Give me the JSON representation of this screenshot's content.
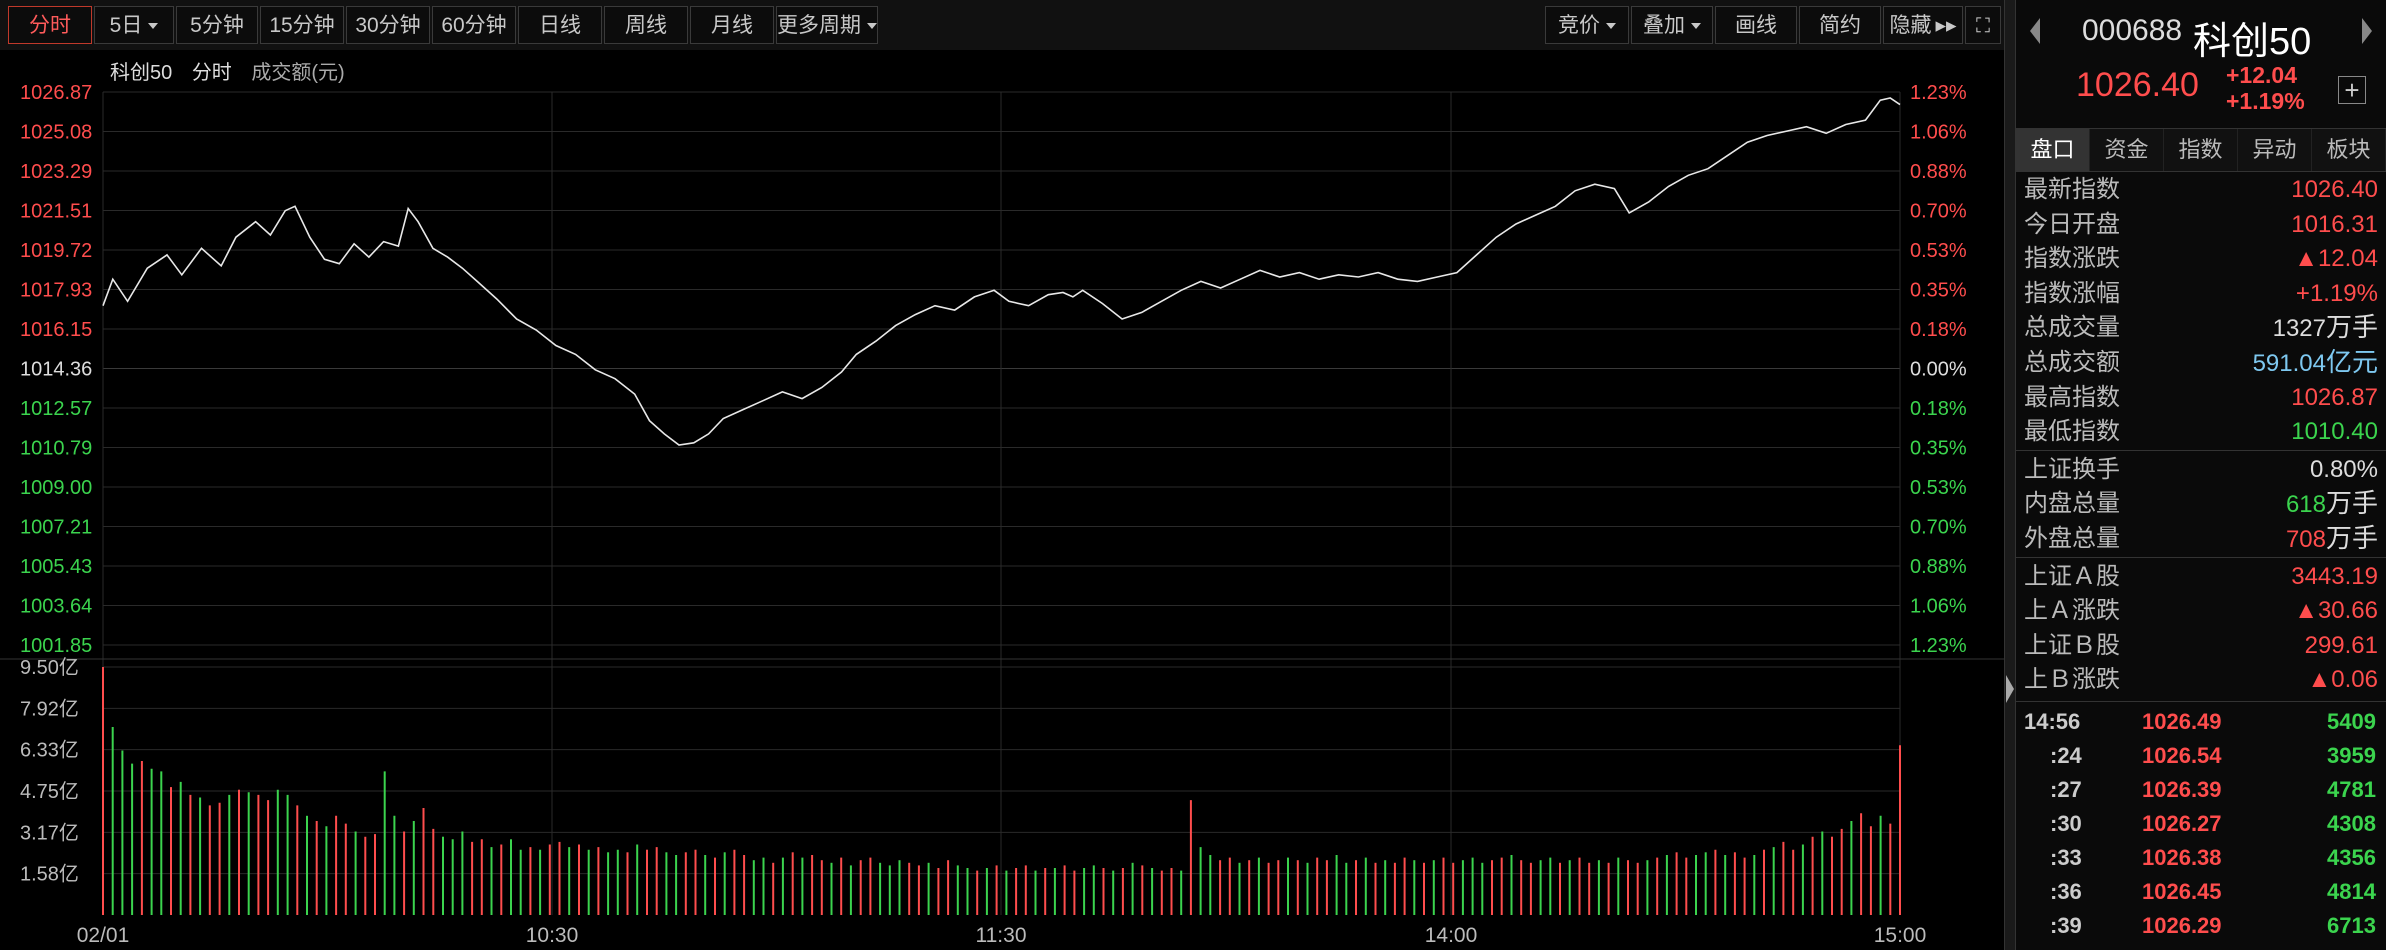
{
  "toolbar": {
    "periods": [
      {
        "label": "分时",
        "active": true
      },
      {
        "label": "5日",
        "dropdown": true
      },
      {
        "label": "5分钟"
      },
      {
        "label": "15分钟"
      },
      {
        "label": "30分钟"
      },
      {
        "label": "60分钟"
      },
      {
        "label": "日线"
      },
      {
        "label": "周线"
      },
      {
        "label": "月线"
      },
      {
        "label": "更多周期",
        "dropdown": true
      }
    ],
    "tools": [
      {
        "label": "竞价",
        "dropdown": true
      },
      {
        "label": "叠加",
        "dropdown": true
      },
      {
        "label": "画线"
      },
      {
        "label": "简约"
      },
      {
        "label": "隐藏"
      }
    ]
  },
  "chart_header": {
    "name": "科创50",
    "mode": "分时",
    "volume_label": "成交额(元)"
  },
  "colors": {
    "up": "#ff4d4d",
    "down": "#3bd44e",
    "flat": "#dddddd",
    "line": "#e8e8e8",
    "grid": "#2a2a2a",
    "accent_blue": "#7ec8f0"
  },
  "chart_data": {
    "type": "line",
    "y_ticks_up": [
      "1026.87",
      "1025.08",
      "1023.29",
      "1021.51",
      "1019.72",
      "1017.93",
      "1016.15"
    ],
    "y_tick_base": "1014.36",
    "y_ticks_down": [
      "1012.57",
      "1010.79",
      "1009.00",
      "1007.21",
      "1005.43",
      "1003.64",
      "1001.85"
    ],
    "pct_ticks_up": [
      "1.23%",
      "1.06%",
      "0.88%",
      "0.70%",
      "0.53%",
      "0.35%",
      "0.18%"
    ],
    "pct_tick_base": "0.00%",
    "pct_ticks_down": [
      "0.18%",
      "0.35%",
      "0.53%",
      "0.70%",
      "0.88%",
      "1.06%",
      "1.23%"
    ],
    "ylim": [
      1001.85,
      1026.87
    ],
    "base": 1014.36,
    "x_ticks": [
      "02/01",
      "10:30",
      "11:30",
      "14:00",
      "15:00"
    ],
    "price_points": [
      [
        0,
        1017.2
      ],
      [
        2,
        1018.4
      ],
      [
        5,
        1017.4
      ],
      [
        9,
        1018.9
      ],
      [
        13,
        1019.5
      ],
      [
        16,
        1018.6
      ],
      [
        20,
        1019.8
      ],
      [
        24,
        1019.0
      ],
      [
        27,
        1020.3
      ],
      [
        31,
        1021.0
      ],
      [
        34,
        1020.4
      ],
      [
        37,
        1021.5
      ],
      [
        39,
        1021.7
      ],
      [
        42,
        1020.3
      ],
      [
        45,
        1019.3
      ],
      [
        48,
        1019.1
      ],
      [
        51,
        1020.0
      ],
      [
        54,
        1019.4
      ],
      [
        57,
        1020.1
      ],
      [
        60,
        1019.9
      ],
      [
        62,
        1021.6
      ],
      [
        64,
        1021.0
      ],
      [
        67,
        1019.8
      ],
      [
        70,
        1019.4
      ],
      [
        73,
        1018.9
      ],
      [
        76,
        1018.3
      ],
      [
        80,
        1017.5
      ],
      [
        84,
        1016.6
      ],
      [
        88,
        1016.1
      ],
      [
        92,
        1015.4
      ],
      [
        96,
        1015.0
      ],
      [
        100,
        1014.3
      ],
      [
        104,
        1013.9
      ],
      [
        108,
        1013.2
      ],
      [
        111,
        1012.0
      ],
      [
        114,
        1011.4
      ],
      [
        117,
        1010.9
      ],
      [
        120,
        1011.0
      ],
      [
        123,
        1011.4
      ],
      [
        126,
        1012.1
      ],
      [
        130,
        1012.5
      ],
      [
        134,
        1012.9
      ],
      [
        138,
        1013.3
      ],
      [
        142,
        1013.0
      ],
      [
        146,
        1013.5
      ],
      [
        150,
        1014.2
      ],
      [
        153,
        1015.0
      ],
      [
        157,
        1015.6
      ],
      [
        161,
        1016.3
      ],
      [
        165,
        1016.8
      ],
      [
        169,
        1017.2
      ],
      [
        173,
        1017.0
      ],
      [
        177,
        1017.6
      ],
      [
        181,
        1017.9
      ],
      [
        184,
        1017.4
      ],
      [
        188,
        1017.2
      ],
      [
        192,
        1017.7
      ],
      [
        195,
        1017.8
      ],
      [
        197,
        1017.6
      ],
      [
        199,
        1017.9
      ],
      [
        203,
        1017.3
      ],
      [
        207,
        1016.6
      ],
      [
        211,
        1016.9
      ],
      [
        215,
        1017.4
      ],
      [
        219,
        1017.9
      ],
      [
        223,
        1018.3
      ],
      [
        227,
        1018.0
      ],
      [
        231,
        1018.4
      ],
      [
        235,
        1018.8
      ],
      [
        239,
        1018.5
      ],
      [
        243,
        1018.7
      ],
      [
        247,
        1018.4
      ],
      [
        251,
        1018.6
      ],
      [
        255,
        1018.5
      ],
      [
        259,
        1018.7
      ],
      [
        263,
        1018.4
      ],
      [
        267,
        1018.3
      ],
      [
        271,
        1018.5
      ],
      [
        275,
        1018.7
      ],
      [
        279,
        1019.5
      ],
      [
        283,
        1020.3
      ],
      [
        287,
        1020.9
      ],
      [
        291,
        1021.3
      ],
      [
        295,
        1021.7
      ],
      [
        299,
        1022.4
      ],
      [
        303,
        1022.7
      ],
      [
        307,
        1022.5
      ],
      [
        310,
        1021.4
      ],
      [
        314,
        1021.9
      ],
      [
        318,
        1022.6
      ],
      [
        322,
        1023.1
      ],
      [
        326,
        1023.4
      ],
      [
        330,
        1024.0
      ],
      [
        334,
        1024.6
      ],
      [
        338,
        1024.9
      ],
      [
        342,
        1025.1
      ],
      [
        346,
        1025.3
      ],
      [
        350,
        1025.0
      ],
      [
        354,
        1025.4
      ],
      [
        358,
        1025.6
      ],
      [
        361,
        1026.5
      ],
      [
        363,
        1026.6
      ],
      [
        365,
        1026.3
      ]
    ],
    "volume_ticks": [
      "9.50亿",
      "7.92亿",
      "6.33亿",
      "4.75亿",
      "3.17亿",
      "1.58亿"
    ],
    "volume_ylim": [
      0,
      9.5
    ],
    "volume_bars": [
      9.5,
      7.2,
      6.3,
      5.8,
      5.9,
      5.6,
      5.5,
      4.9,
      5.1,
      4.6,
      4.5,
      4.2,
      4.3,
      4.6,
      4.8,
      4.7,
      4.6,
      4.4,
      4.8,
      4.6,
      4.2,
      3.8,
      3.6,
      3.4,
      3.8,
      3.5,
      3.2,
      3.0,
      3.1,
      5.5,
      3.8,
      3.2,
      3.6,
      4.1,
      3.3,
      3.0,
      2.9,
      3.2,
      2.8,
      2.9,
      2.6,
      2.7,
      2.9,
      2.5,
      2.6,
      2.5,
      2.7,
      2.8,
      2.6,
      2.7,
      2.5,
      2.6,
      2.4,
      2.5,
      2.4,
      2.7,
      2.5,
      2.6,
      2.4,
      2.3,
      2.4,
      2.5,
      2.3,
      2.2,
      2.4,
      2.5,
      2.3,
      2.1,
      2.2,
      2.0,
      2.2,
      2.4,
      2.2,
      2.3,
      2.1,
      2.0,
      2.2,
      1.9,
      2.1,
      2.2,
      2.0,
      1.9,
      2.1,
      2.0,
      1.9,
      2.0,
      1.8,
      2.1,
      1.9,
      1.8,
      1.7,
      1.8,
      1.9,
      1.7,
      1.8,
      1.9,
      1.7,
      1.8,
      1.8,
      1.9,
      1.7,
      1.8,
      1.9,
      1.8,
      1.7,
      1.8,
      2.0,
      1.9,
      1.8,
      1.7,
      1.8,
      1.7,
      4.4,
      2.6,
      2.3,
      2.1,
      2.2,
      2.0,
      2.1,
      2.2,
      2.0,
      2.1,
      2.2,
      2.1,
      2.0,
      2.2,
      2.1,
      2.3,
      2.0,
      2.1,
      2.2,
      2.0,
      2.1,
      2.0,
      2.2,
      2.1,
      2.0,
      2.1,
      2.2,
      2.0,
      2.1,
      2.2,
      2.0,
      2.1,
      2.2,
      2.3,
      2.1,
      2.0,
      2.1,
      2.2,
      2.0,
      2.1,
      2.2,
      2.0,
      2.1,
      2.0,
      2.2,
      2.1,
      2.0,
      2.1,
      2.2,
      2.3,
      2.4,
      2.2,
      2.3,
      2.4,
      2.5,
      2.3,
      2.4,
      2.2,
      2.3,
      2.5,
      2.6,
      2.8,
      2.5,
      2.7,
      3.0,
      3.2,
      3.0,
      3.3,
      3.6,
      3.9,
      3.4,
      3.8,
      3.5,
      6.5
    ],
    "volume_colors": "rgggrggrgrgrrgrgrrggrgrgrrgrrggrgrrgggrrgrggrgrrgrgrggrgrrggrrgrgrrggrgrgrrgrgrrgggrrgrrggrgrgrrgrgrrggrgrgrgrrgrggrrgrgrrgrgrrggrgrgrrgrgrrgggrrgrrggrgrrgrgrrgrgrrggrgrrgrgrrgrgrrgrrgrrg"
  },
  "right_panel": {
    "code": "000688",
    "name": "科创50",
    "price": "1026.40",
    "change": "+12.04",
    "change_pct": "+1.19%",
    "tabs": [
      {
        "label": "盘口",
        "active": true
      },
      {
        "label": "资金"
      },
      {
        "label": "指数"
      },
      {
        "label": "异动"
      },
      {
        "label": "板块"
      }
    ],
    "quotes": [
      {
        "label": "最新指数",
        "value": "1026.40",
        "color": "up"
      },
      {
        "label": "今日开盘",
        "value": "1016.31",
        "color": "up"
      },
      {
        "label": "指数涨跌",
        "value": "▲12.04",
        "color": "up"
      },
      {
        "label": "指数涨幅",
        "value": "+1.19%",
        "color": "up"
      },
      {
        "label": "总成交量",
        "value": "1327",
        "unit": "万手",
        "color": "flat"
      },
      {
        "label": "总成交额",
        "value": "591.04",
        "unit": "亿元",
        "color": "blue"
      },
      {
        "label": "最高指数",
        "value": "1026.87",
        "color": "up"
      },
      {
        "label": "最低指数",
        "value": "1010.40",
        "color": "down"
      },
      {
        "label": "上证换手",
        "value": "0.80%",
        "color": "flat"
      },
      {
        "label": "内盘总量",
        "value": "618",
        "unit": "万手",
        "color": "down"
      },
      {
        "label": "外盘总量",
        "value": "708",
        "unit": "万手",
        "color": "up"
      },
      {
        "label": "上证Ａ股",
        "value": "3443.19",
        "color": "up"
      },
      {
        "label": "上Ａ涨跌",
        "value": "▲30.66",
        "color": "up"
      },
      {
        "label": "上证Ｂ股",
        "value": "299.61",
        "color": "up"
      },
      {
        "label": "上Ｂ涨跌",
        "value": "▲0.06",
        "color": "up"
      }
    ],
    "ticks": [
      {
        "time": "14:56",
        "price": "1026.49",
        "vol": "5409"
      },
      {
        "time": ":24",
        "price": "1026.54",
        "vol": "3959"
      },
      {
        "time": ":27",
        "price": "1026.39",
        "vol": "4781"
      },
      {
        "time": ":30",
        "price": "1026.27",
        "vol": "4308"
      },
      {
        "time": ":33",
        "price": "1026.38",
        "vol": "4356"
      },
      {
        "time": ":36",
        "price": "1026.45",
        "vol": "4814"
      },
      {
        "time": ":39",
        "price": "1026.29",
        "vol": "6713"
      }
    ]
  }
}
